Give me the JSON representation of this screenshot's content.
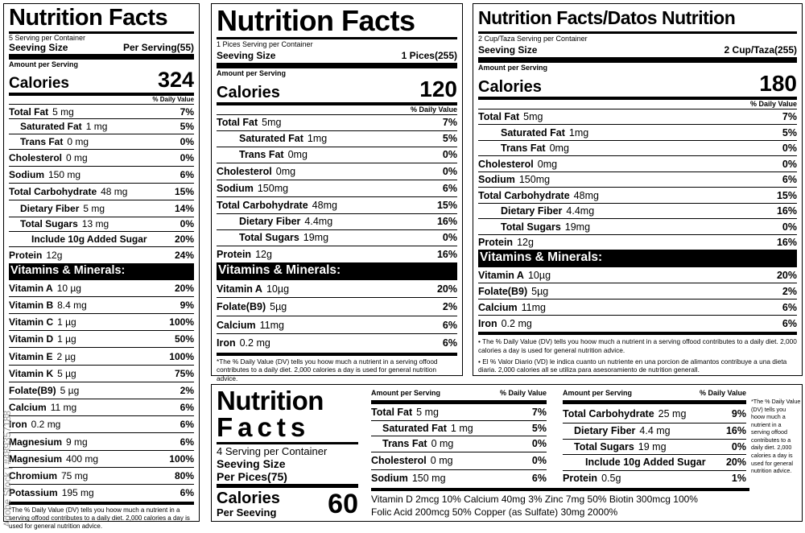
{
  "label1": {
    "title": "Nutrition Facts",
    "servings": "5 Serving per Container",
    "serving_size_label": "Seeving Size",
    "serving_size_value": "Per Serving(55)",
    "amount_label": "Amount per Serving",
    "calories_label": "Calories",
    "calories_value": "324",
    "dv_header": "% Daily Value",
    "nutrients": [
      {
        "name": "Total Fat",
        "value": "5 mg",
        "pct": "7%"
      },
      {
        "name": "Saturated Fat",
        "value": "1 mg",
        "pct": "5%"
      },
      {
        "name": "Trans Fat",
        "value": "0 mg",
        "pct": "0%"
      },
      {
        "name": "Cholesterol",
        "value": "0 mg",
        "pct": "0%"
      },
      {
        "name": "Sodium",
        "value": "150 mg",
        "pct": "6%"
      },
      {
        "name": "Total Carbohydrate",
        "value": "48 mg",
        "pct": "15%"
      },
      {
        "name": "Dietary Fiber",
        "value": "5 mg",
        "pct": "14%"
      },
      {
        "name": "Total Sugars",
        "value": "13 mg",
        "pct": "0%"
      },
      {
        "name": "Include 10g Added Sugar",
        "value": "",
        "pct": "20%"
      },
      {
        "name": "Protein",
        "value": "12g",
        "pct": "24%"
      }
    ],
    "vitamins_header": "Vitamins & Minerals:",
    "vitamins": [
      {
        "name": "Vitamin A",
        "value": "10 µg",
        "pct": "20%"
      },
      {
        "name": "Vitamin B",
        "value": "8.4 mg",
        "pct": "9%"
      },
      {
        "name": "Vitamin C",
        "value": "1 µg",
        "pct": "100%"
      },
      {
        "name": "Vitamin D",
        "value": "1 µg",
        "pct": "50%"
      },
      {
        "name": "Vitamin E",
        "value": "2 µg",
        "pct": "100%"
      },
      {
        "name": "Vitamin K",
        "value": "5 µg",
        "pct": "75%"
      },
      {
        "name": "Folate(B9)",
        "value": "5 µg",
        "pct": "2%"
      },
      {
        "name": "Calcium",
        "value": "11 mg",
        "pct": "6%"
      },
      {
        "name": "Iron",
        "value": "0.2 mg",
        "pct": "6%"
      },
      {
        "name": "Magnesium",
        "value": "9 mg",
        "pct": "6%"
      },
      {
        "name": "Magnesium",
        "value": "400 mg",
        "pct": "100%"
      },
      {
        "name": "Chromium",
        "value": "75 mg",
        "pct": "80%"
      },
      {
        "name": "Potassium",
        "value": "195 mg",
        "pct": "6%"
      }
    ],
    "footnote": "*The % Daily Value (DV) tells you hoow much a nutrient in a serving offood contributes to a daily diet. 2,000 calories a day is used for general nutrition advice."
  },
  "label2": {
    "title": "Nutrition Facts",
    "servings": "1 Pices Serving per Container",
    "serving_size_label": "Seeving Size",
    "serving_size_value": "1 Pices(255)",
    "amount_label": "Amount per Serving",
    "calories_label": "Calories",
    "calories_value": "120",
    "dv_header": "% Daily Value",
    "nutrients": [
      {
        "name": "Total Fat",
        "value": "5mg",
        "pct": "7%"
      },
      {
        "name": "Saturated Fat",
        "value": "1mg",
        "pct": "5%"
      },
      {
        "name": "Trans Fat",
        "value": "0mg",
        "pct": "0%"
      },
      {
        "name": "Cholesterol",
        "value": "0mg",
        "pct": "0%"
      },
      {
        "name": "Sodium",
        "value": "150mg",
        "pct": "6%"
      },
      {
        "name": "Total Carbohydrate",
        "value": "48mg",
        "pct": "15%"
      },
      {
        "name": "Dietary Fiber",
        "value": "4.4mg",
        "pct": "16%"
      },
      {
        "name": "Total Sugars",
        "value": "19mg",
        "pct": "0%"
      },
      {
        "name": "Protein",
        "value": "12g",
        "pct": "16%"
      }
    ],
    "vitamins_header": "Vitamins & Minerals:",
    "vitamins": [
      {
        "name": "Vitamin A",
        "value": "10µg",
        "pct": "20%"
      },
      {
        "name": "Folate(B9)",
        "value": "5µg",
        "pct": "2%"
      },
      {
        "name": "Calcium",
        "value": "11mg",
        "pct": "6%"
      },
      {
        "name": "Iron",
        "value": "0.2 mg",
        "pct": "6%"
      }
    ],
    "footnote": "*The % Daily Value (DV) tells you hoow much a nutrient in a serving offood contributes to a daily diet. 2,000 calories a day is used for general nutrition advice."
  },
  "label3": {
    "title": "Nutrition Facts/Datos Nutrition",
    "servings": "2 Cup/Taza Serving per Container",
    "serving_size_label": "Seeving Size",
    "serving_size_value": "2 Cup/Taza(255)",
    "amount_label": "Amount per Serving",
    "calories_label": "Calories",
    "calories_value": "180",
    "dv_header": "% Daily Value",
    "nutrients": [
      {
        "name": "Total Fat",
        "value": "5mg",
        "pct": "7%"
      },
      {
        "name": "Saturated Fat",
        "value": "1mg",
        "pct": "5%"
      },
      {
        "name": "Trans Fat",
        "value": "0mg",
        "pct": "0%"
      },
      {
        "name": "Cholesterol",
        "value": "0mg",
        "pct": "0%"
      },
      {
        "name": "Sodium",
        "value": "150mg",
        "pct": "6%"
      },
      {
        "name": "Total Carbohydrate",
        "value": "48mg",
        "pct": "15%"
      },
      {
        "name": "Dietary Fiber",
        "value": "4.4mg",
        "pct": "16%"
      },
      {
        "name": "Total Sugars",
        "value": "19mg",
        "pct": "0%"
      },
      {
        "name": "Protein",
        "value": "12g",
        "pct": "16%"
      }
    ],
    "vitamins_header": "Vitamins & Minerals:",
    "vitamins": [
      {
        "name": "Vitamin A",
        "value": "10µg",
        "pct": "20%"
      },
      {
        "name": "Folate(B9)",
        "value": "5µg",
        "pct": "2%"
      },
      {
        "name": "Calcium",
        "value": "11mg",
        "pct": "6%"
      },
      {
        "name": "Iron",
        "value": "0.2 mg",
        "pct": "6%"
      }
    ],
    "footnote_en": "• The % Daily Value (DV) tells you hoow much a nutrient in a serving offood contributes to a daily diet. 2,000 calories a day is used for general nutrition advice.",
    "footnote_es": "• El % Valor Diario (VD) le indica cuanto un nutriente en una porcion de alimantos contribuye a una dieta diaria. 2,000 calories all se utiliza para asesoramiento de nutrition generall."
  },
  "label4": {
    "title_line1": "Nutrition",
    "title_line2": "Facts",
    "servings": "4 Serving per Container",
    "serving_size_label": "Seeving Size",
    "serving_size_value": "Per Pices(75)",
    "calories_label": "Calories",
    "calories_sub": "Per Seeving",
    "calories_value": "60",
    "col1_header_left": "Amount per Serving",
    "col1_header_right": "% Daily Value",
    "col1": [
      {
        "name": "Total Fat",
        "value": "5 mg",
        "pct": "7%"
      },
      {
        "name": "Saturated Fat",
        "value": "1 mg",
        "pct": "5%"
      },
      {
        "name": "Trans Fat",
        "value": "0 mg",
        "pct": "0%"
      },
      {
        "name": "Cholesterol",
        "value": "0 mg",
        "pct": "0%"
      },
      {
        "name": "Sodium",
        "value": "150 mg",
        "pct": "6%"
      }
    ],
    "col2_header_left": "Amount per Serving",
    "col2_header_right": "% Daily Value",
    "col2": [
      {
        "name": "Total Carbohydrate",
        "value": "25 mg",
        "pct": "9%"
      },
      {
        "name": "Dietary Fiber",
        "value": "4.4 mg",
        "pct": "16%"
      },
      {
        "name": "Total Sugars",
        "value": "19 mg",
        "pct": "0%"
      },
      {
        "name": "Include 10g Added Sugar",
        "value": "",
        "pct": "20%"
      },
      {
        "name": "Protein",
        "value": "0.5g",
        "pct": "1%"
      }
    ],
    "vitamins_line1": "Vitamin D 2mcg 10%   Calcium 40mg 3%   Zinc 7mg 50%   Biotin 300mcg 100%",
    "vitamins_line2": "Folic Acid 200mcg 50%   Copper (as Sulfate) 30mg 2000%",
    "footnote": "*The % Daily Value (DV) tells you hoow much a nutrient in a serving offood contributes to a daily diet. 2,000 calories a day is used for general nutrition advice."
  },
  "watermark": "Adobe Stock | #489357188"
}
